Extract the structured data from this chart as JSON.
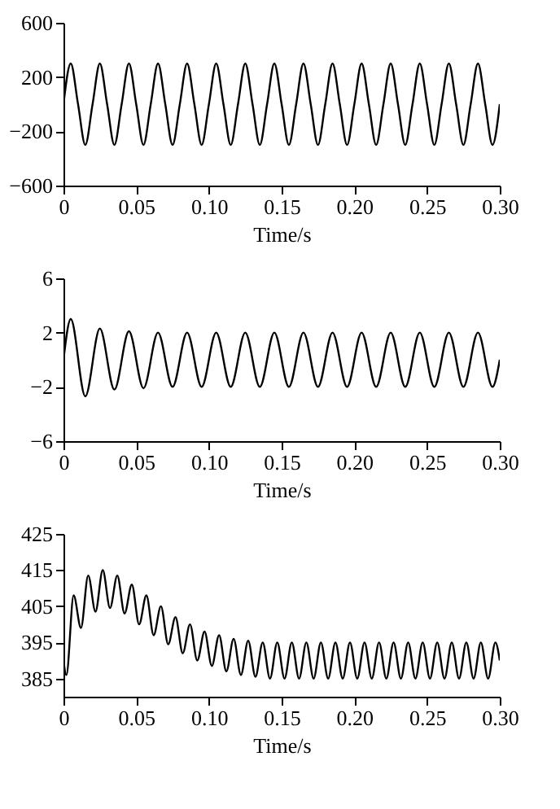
{
  "chart_data": [
    {
      "type": "line",
      "xlabel": "Time/s",
      "color": "#000000",
      "xlim": [
        0,
        0.3
      ],
      "ylim": [
        -600,
        600
      ],
      "yticks": [
        -600,
        -200,
        200,
        600
      ],
      "xticks": [
        {
          "value": 0,
          "label": "0"
        },
        0.05,
        {
          "value": 0.1,
          "label": "0.10"
        },
        0.15,
        {
          "value": 0.2,
          "label": "0.20"
        },
        0.25,
        {
          "value": 0.3,
          "label": "0.30"
        }
      ],
      "x": [
        0,
        0.005,
        0.01,
        0.015,
        0.02,
        0.025,
        0.03,
        0.035,
        0.04,
        0.045,
        0.05,
        0.055,
        0.06,
        0.065,
        0.07,
        0.075,
        0.08,
        0.085,
        0.09,
        0.095,
        0.1,
        0.105,
        0.11,
        0.115,
        0.12,
        0.125,
        0.13,
        0.135,
        0.14,
        0.145,
        0.15,
        0.155,
        0.16,
        0.165,
        0.17,
        0.175,
        0.18,
        0.185,
        0.19,
        0.195,
        0.2,
        0.205,
        0.21,
        0.215,
        0.22,
        0.225,
        0.23,
        0.235,
        0.24,
        0.245,
        0.25,
        0.255,
        0.26,
        0.265,
        0.27,
        0.275,
        0.28,
        0.285,
        0.29,
        0.295,
        0.3
      ],
      "values": [
        0,
        300,
        0,
        -300,
        0,
        300,
        0,
        -300,
        0,
        300,
        0,
        -300,
        0,
        300,
        0,
        -300,
        0,
        300,
        0,
        -300,
        0,
        300,
        0,
        -300,
        0,
        300,
        0,
        -300,
        0,
        300,
        0,
        -300,
        0,
        300,
        0,
        -300,
        0,
        300,
        0,
        -300,
        0,
        300,
        0,
        -300,
        0,
        300,
        0,
        -300,
        0,
        300,
        0,
        -300,
        0,
        300,
        0,
        -300,
        0,
        300,
        0,
        -300,
        0
      ]
    },
    {
      "type": "line",
      "xlabel": "Time/s",
      "color": "#000000",
      "xlim": [
        0,
        0.3
      ],
      "ylim": [
        -6,
        6
      ],
      "yticks": [
        -6,
        -2,
        2,
        6
      ],
      "xticks": [
        {
          "value": 0,
          "label": "0"
        },
        0.05,
        {
          "value": 0.1,
          "label": "0.10"
        },
        0.15,
        {
          "value": 0.2,
          "label": "0.20"
        },
        0.25,
        {
          "value": 0.3,
          "label": "0.30"
        }
      ],
      "x": [
        0,
        0.005,
        0.015,
        0.025,
        0.035,
        0.045,
        0.055,
        0.065,
        0.075,
        0.085,
        0.095,
        0.105,
        0.115,
        0.125,
        0.135,
        0.145,
        0.155,
        0.165,
        0.175,
        0.185,
        0.195,
        0.205,
        0.215,
        0.225,
        0.235,
        0.245,
        0.255,
        0.265,
        0.275,
        0.285,
        0.295,
        0.3
      ],
      "values": [
        0,
        3,
        -2.7,
        2.3,
        -2.2,
        2.1,
        -2.1,
        2,
        -2,
        2,
        -2,
        2,
        -2,
        2,
        -2,
        2,
        -2,
        2,
        -2,
        2,
        -2,
        2,
        -2,
        2,
        -2,
        2,
        -2,
        2,
        -2,
        2,
        -2,
        0
      ]
    },
    {
      "type": "line",
      "xlabel": "Time/s",
      "color": "#000000",
      "xlim": [
        0,
        0.3
      ],
      "ylim": [
        380,
        425
      ],
      "yticks": [
        385,
        395,
        405,
        415,
        425
      ],
      "xticks": [
        {
          "value": 0,
          "label": "0"
        },
        0.05,
        {
          "value": 0.1,
          "label": "0.10"
        },
        0.15,
        {
          "value": 0.2,
          "label": "0.20"
        },
        0.25,
        {
          "value": 0.3,
          "label": "0.30"
        }
      ],
      "x": [
        0,
        0.002,
        0.007,
        0.012,
        0.017,
        0.022,
        0.027,
        0.032,
        0.037,
        0.042,
        0.047,
        0.052,
        0.057,
        0.062,
        0.067,
        0.072,
        0.077,
        0.082,
        0.087,
        0.092,
        0.097,
        0.102,
        0.107,
        0.112,
        0.117,
        0.122,
        0.127,
        0.132,
        0.137,
        0.142,
        0.147,
        0.152,
        0.157,
        0.162,
        0.167,
        0.172,
        0.177,
        0.182,
        0.187,
        0.192,
        0.197,
        0.202,
        0.207,
        0.212,
        0.217,
        0.222,
        0.227,
        0.232,
        0.237,
        0.242,
        0.247,
        0.252,
        0.257,
        0.262,
        0.267,
        0.272,
        0.277,
        0.282,
        0.287,
        0.292,
        0.297,
        0.3
      ],
      "values": [
        390,
        386,
        408,
        399,
        413.5,
        403.5,
        415,
        404.5,
        413.5,
        403,
        411,
        400,
        408,
        397,
        405,
        394.5,
        402,
        392,
        400,
        390,
        398,
        388.5,
        397,
        387,
        396,
        386,
        395.5,
        385.5,
        395,
        385,
        395,
        385,
        395,
        385,
        395,
        385,
        395,
        385,
        395,
        385,
        395,
        385,
        395,
        385,
        395,
        385,
        395,
        385,
        395,
        385,
        395,
        385,
        395,
        385,
        395,
        385,
        395,
        385,
        395,
        385,
        395,
        390
      ]
    }
  ]
}
